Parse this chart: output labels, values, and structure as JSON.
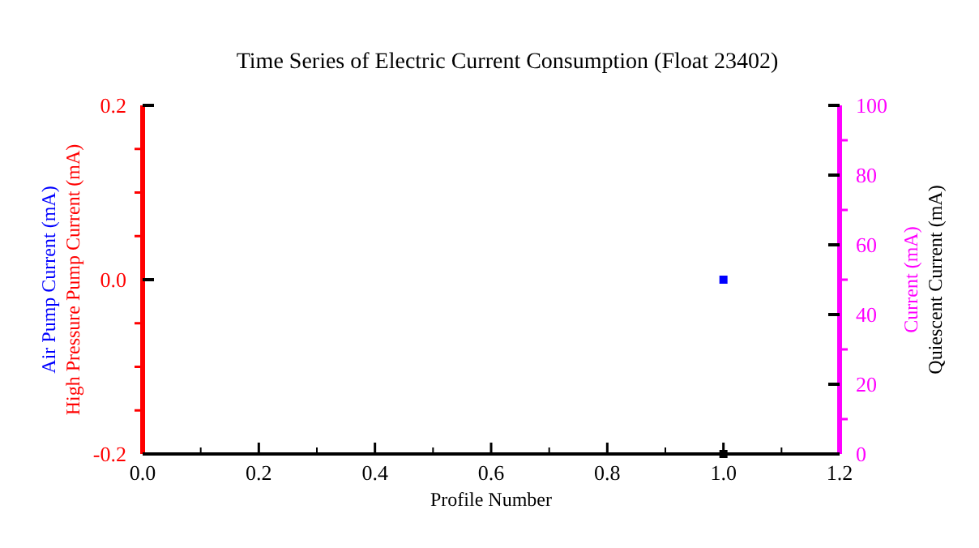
{
  "chart_data": {
    "type": "scatter",
    "title": "Time Series of Electric Current Consumption (Float 23402)",
    "xlabel": "Profile Number",
    "ylabel": "Air Pump Current (mA)\nHigh Pressure Pump Current (mA)",
    "y2label": "Current (mA)\nQuiescent Current (mA)",
    "x": [
      1
    ],
    "series": [
      {
        "color": "#0000ff",
        "values": [
          0
        ]
      },
      {
        "color": "#ff0000",
        "values": [
          null
        ]
      },
      {
        "color": "#ff00ff",
        "values": [
          null
        ],
        "axis": "y2"
      },
      {
        "color": "#000000",
        "values": [
          0
        ],
        "axis": "y2"
      }
    ],
    "xlim": [
      0,
      1.2
    ],
    "xticks": [
      {
        "value": 0,
        "label": "0.0"
      },
      {
        "value": 0.2,
        "label": "0.2"
      },
      {
        "value": 0.4,
        "label": "0.4"
      },
      {
        "value": 0.6,
        "label": "0.6"
      },
      {
        "value": 0.8,
        "label": "0.8"
      },
      {
        "value": 1,
        "label": "1.0"
      },
      {
        "value": 1.2,
        "label": "1.2"
      }
    ],
    "ylim": [
      -0.2,
      0.2
    ],
    "yticks": [
      {
        "value": -0.2,
        "label": "-0.2"
      },
      {
        "value": 0,
        "label": "0.0"
      },
      {
        "value": 0.2,
        "label": "0.2"
      }
    ],
    "y2lim": [
      0,
      100
    ],
    "y2ticks": [
      0,
      20,
      40,
      60,
      80,
      100
    ],
    "marker": "square"
  }
}
